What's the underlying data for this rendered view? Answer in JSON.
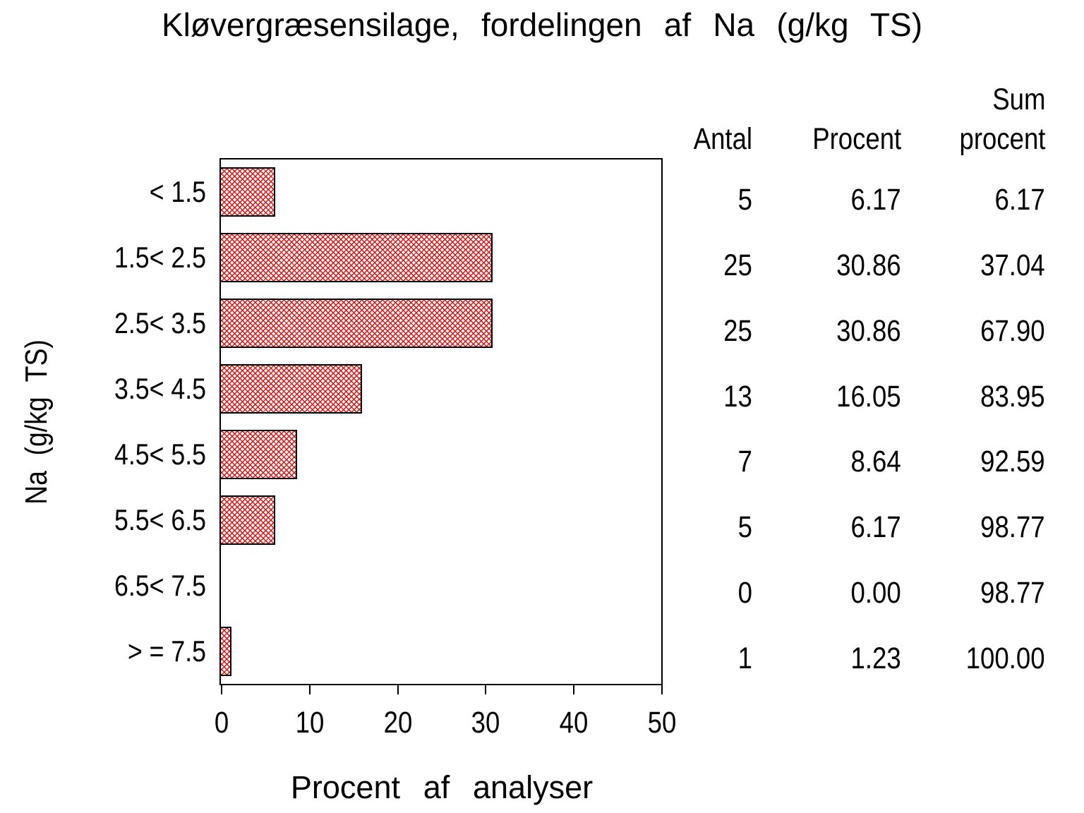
{
  "title": "Kløvergræsensilage, fordelingen af Na (g/kg TS)",
  "chart_data": {
    "type": "bar",
    "orientation": "horizontal",
    "title": "Kløvergræsensilage, fordelingen af Na (g/kg TS)",
    "xlabel": "Procent af analyser",
    "ylabel": "Na (g/kg TS)",
    "xlim": [
      0,
      50
    ],
    "xticks": [
      0,
      10,
      20,
      30,
      40,
      50
    ],
    "grid": "off",
    "categories": [
      "< 1.5",
      "1.5< 2.5",
      "2.5< 3.5",
      "3.5< 4.5",
      "4.5< 5.5",
      "5.5< 6.5",
      "6.5< 7.5",
      "> = 7.5"
    ],
    "values": [
      6.17,
      30.86,
      30.86,
      16.05,
      8.64,
      6.17,
      0.0,
      1.23
    ],
    "series": [
      {
        "name": "Antal",
        "values": [
          5,
          25,
          25,
          13,
          7,
          5,
          0,
          1
        ]
      },
      {
        "name": "Procent",
        "values": [
          6.17,
          30.86,
          30.86,
          16.05,
          8.64,
          6.17,
          0.0,
          1.23
        ]
      },
      {
        "name": "Sum procent",
        "values": [
          6.17,
          37.04,
          67.9,
          83.95,
          92.59,
          98.77,
          98.77,
          100.0
        ]
      }
    ],
    "bar_style": {
      "hatch": "diagonal-crosshatch",
      "hatch_color": "#e60d0d",
      "border_color": "#000000",
      "background": "#ffffff"
    }
  },
  "table": {
    "headers": [
      "Antal",
      "Procent",
      "Sum\nprocent"
    ],
    "rows": [
      {
        "antal": "5",
        "procent": "6.17",
        "sum": "6.17"
      },
      {
        "antal": "25",
        "procent": "30.86",
        "sum": "37.04"
      },
      {
        "antal": "25",
        "procent": "30.86",
        "sum": "67.90"
      },
      {
        "antal": "13",
        "procent": "16.05",
        "sum": "83.95"
      },
      {
        "antal": "7",
        "procent": "8.64",
        "sum": "92.59"
      },
      {
        "antal": "5",
        "procent": "6.17",
        "sum": "98.77"
      },
      {
        "antal": "0",
        "procent": "0.00",
        "sum": "98.77"
      },
      {
        "antal": "1",
        "procent": "1.23",
        "sum": "100.00"
      }
    ]
  }
}
